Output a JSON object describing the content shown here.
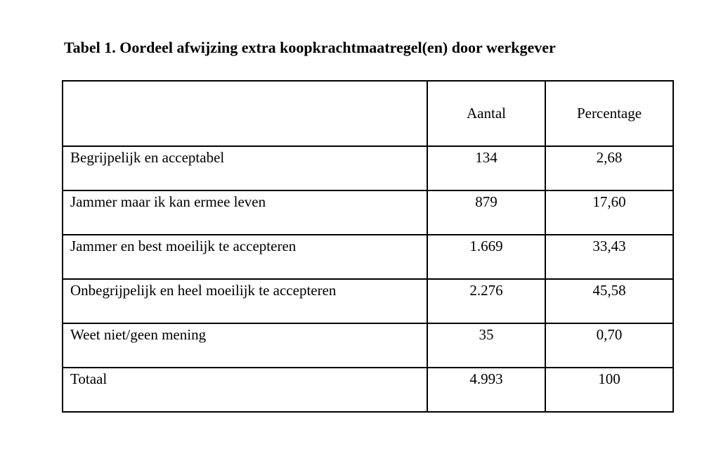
{
  "page": {
    "background_color": "#ffffff",
    "text_color": "#000000",
    "border_color": "#000000",
    "title": "Tabel 1. Oordeel afwijzing extra koopkrachtmaatregel(en) door werkgever"
  },
  "table": {
    "columns": [
      "",
      "Aantal",
      "Percentage"
    ],
    "rows": [
      {
        "label": "Begrijpelijk en acceptabel",
        "aantal": "134",
        "percentage": "2,68"
      },
      {
        "label": "Jammer maar ik kan ermee leven",
        "aantal": "879",
        "percentage": "17,60"
      },
      {
        "label": "Jammer en best moeilijk te accepteren",
        "aantal": "1.669",
        "percentage": "33,43"
      },
      {
        "label": "Onbegrijpelijk en heel moeilijk te accepteren",
        "aantal": "2.276",
        "percentage": "45,58"
      },
      {
        "label": "Weet niet/geen mening",
        "aantal": "35",
        "percentage": "0,70"
      },
      {
        "label": "Totaal",
        "aantal": "4.993",
        "percentage": "100"
      }
    ]
  },
  "chart_data": {
    "type": "table",
    "title": "Tabel 1. Oordeel afwijzing extra koopkrachtmaatregel(en) door werkgever",
    "columns": [
      "",
      "Aantal",
      "Percentage"
    ],
    "categories": [
      "Begrijpelijk en acceptabel",
      "Jammer maar ik kan ermee leven",
      "Jammer en best moeilijk te accepteren",
      "Onbegrijpelijk en heel moeilijk te accepteren",
      "Weet niet/geen mening",
      "Totaal"
    ],
    "series": [
      {
        "name": "Aantal",
        "values": [
          134,
          879,
          1669,
          2276,
          35,
          4993
        ]
      },
      {
        "name": "Percentage",
        "values": [
          2.68,
          17.6,
          33.43,
          45.58,
          0.7,
          100
        ]
      }
    ]
  }
}
